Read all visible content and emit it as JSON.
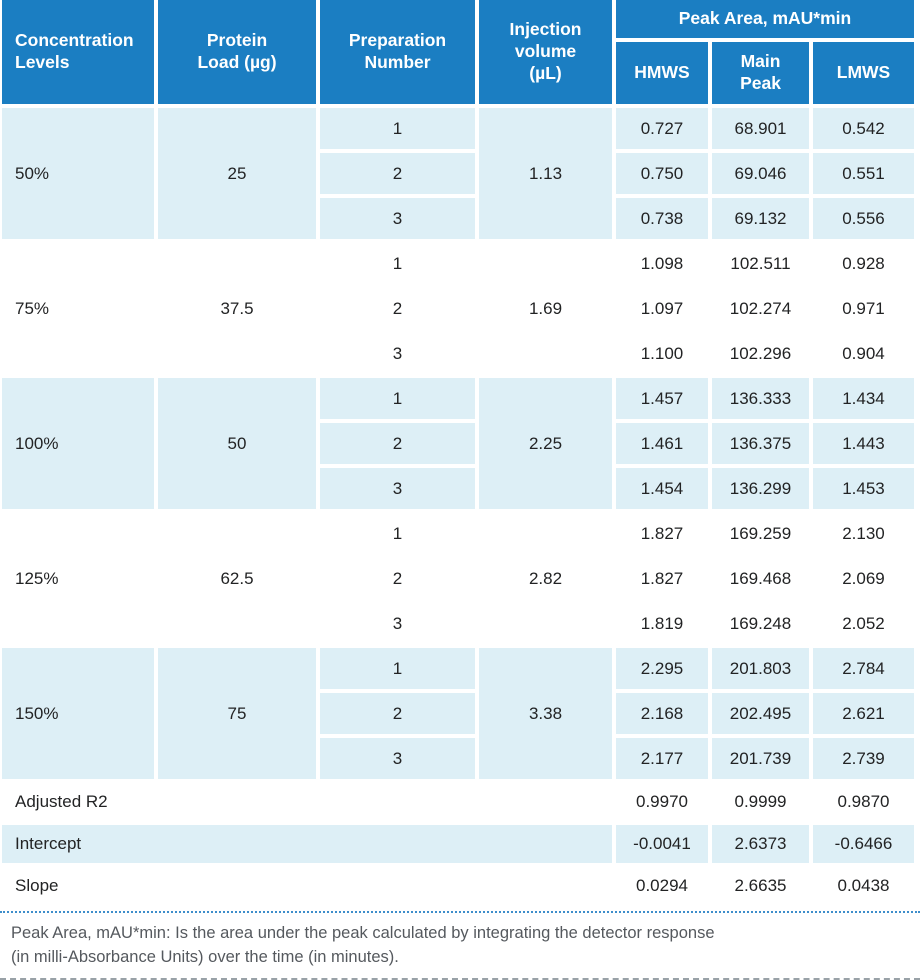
{
  "chart_data": {
    "type": "table",
    "title": "Peak Area, mAU*min",
    "header": {
      "concentration": "Concentration Levels",
      "protein_load": "Protein Load (µg)",
      "preparation": "Preparation Number",
      "injection": "Injection volume (µL)",
      "peak_area_group": "Peak Area, mAU*min",
      "subcolumns": [
        "HMWS",
        "Main Peak",
        "LMWS"
      ]
    },
    "groups": [
      {
        "level": "50%",
        "load": "25",
        "injection": "1.13",
        "shaded": true,
        "rows": [
          {
            "prep": "1",
            "hmws": "0.727",
            "main": "68.901",
            "lmws": "0.542"
          },
          {
            "prep": "2",
            "hmws": "0.750",
            "main": "69.046",
            "lmws": "0.551"
          },
          {
            "prep": "3",
            "hmws": "0.738",
            "main": "69.132",
            "lmws": "0.556"
          }
        ]
      },
      {
        "level": "75%",
        "load": "37.5",
        "injection": "1.69",
        "shaded": false,
        "rows": [
          {
            "prep": "1",
            "hmws": "1.098",
            "main": "102.511",
            "lmws": "0.928"
          },
          {
            "prep": "2",
            "hmws": "1.097",
            "main": "102.274",
            "lmws": "0.971"
          },
          {
            "prep": "3",
            "hmws": "1.100",
            "main": "102.296",
            "lmws": "0.904"
          }
        ]
      },
      {
        "level": "100%",
        "load": "50",
        "injection": "2.25",
        "shaded": true,
        "rows": [
          {
            "prep": "1",
            "hmws": "1.457",
            "main": "136.333",
            "lmws": "1.434"
          },
          {
            "prep": "2",
            "hmws": "1.461",
            "main": "136.375",
            "lmws": "1.443"
          },
          {
            "prep": "3",
            "hmws": "1.454",
            "main": "136.299",
            "lmws": "1.453"
          }
        ]
      },
      {
        "level": "125%",
        "load": "62.5",
        "injection": "2.82",
        "shaded": false,
        "rows": [
          {
            "prep": "1",
            "hmws": "1.827",
            "main": "169.259",
            "lmws": "2.130"
          },
          {
            "prep": "2",
            "hmws": "1.827",
            "main": "169.468",
            "lmws": "2.069"
          },
          {
            "prep": "3",
            "hmws": "1.819",
            "main": "169.248",
            "lmws": "2.052"
          }
        ]
      },
      {
        "level": "150%",
        "load": "75",
        "injection": "3.38",
        "shaded": true,
        "rows": [
          {
            "prep": "1",
            "hmws": "2.295",
            "main": "201.803",
            "lmws": "2.784"
          },
          {
            "prep": "2",
            "hmws": "2.168",
            "main": "202.495",
            "lmws": "2.621"
          },
          {
            "prep": "3",
            "hmws": "2.177",
            "main": "201.739",
            "lmws": "2.739"
          }
        ]
      }
    ],
    "summary": [
      {
        "label": "Adjusted R2",
        "hmws": "0.9970",
        "main": "0.9999",
        "lmws": "0.9870",
        "shaded": false
      },
      {
        "label": "Intercept",
        "hmws": "-0.0041",
        "main": "2.6373",
        "lmws": "-0.6466",
        "shaded": true
      },
      {
        "label": "Slope",
        "hmws": "0.0294",
        "main": "2.6635",
        "lmws": "0.0438",
        "shaded": false
      }
    ],
    "footnote": {
      "line1": "Peak Area, mAU*min: Is the area under the peak calculated by integrating the detector response",
      "line2": "(in milli-Absorbance Units) over the time (in minutes)."
    },
    "colors": {
      "header_bg": "#1b7ec2",
      "shaded_row_bg": "#ddeff6",
      "body_text": "#222324",
      "footnote_text": "#55595e",
      "dotted_line_blue": "#3e8ecb",
      "dashed_line_gray": "#99a1a7"
    }
  }
}
